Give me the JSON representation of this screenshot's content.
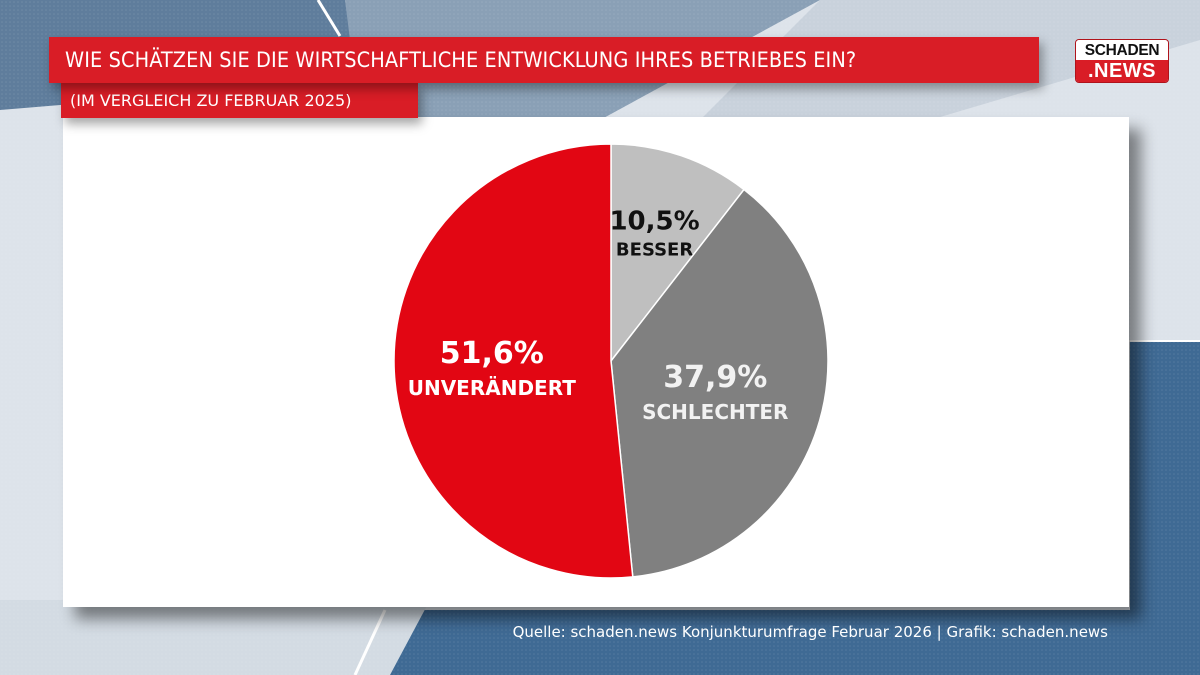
{
  "header": {
    "title": "WIE SCHÄTZEN SIE DIE WIRTSCHAFTLICHE ENTWICKLUNG IHRES BETRIEBES EIN?",
    "subtitle": "(IM VERGLEICH ZU FEBRUAR 2025)"
  },
  "logo": {
    "line1": "SCHADEN",
    "line2": ".NEWS"
  },
  "footer": {
    "source": "Quelle: schaden.news Konjunkturumfrage Februar 2026 | Grafik: schaden.news"
  },
  "colors": {
    "brand_red": "#d91d26",
    "background_blue": "#3f6a94"
  },
  "chart_data": {
    "type": "pie",
    "title": "WIE SCHÄTZEN SIE DIE WIRTSCHAFTLICHE ENTWICKLUNG IHRES BETRIEBES EIN?",
    "subtitle": "(IM VERGLEICH ZU FEBRUAR 2025)",
    "start": "top",
    "direction": "clockwise",
    "slices": [
      {
        "label": "BESSER",
        "value": 10.5,
        "value_label": "10,5%",
        "color": "#bfbfbf",
        "text_color": "#111111"
      },
      {
        "label": "SCHLECHTER",
        "value": 37.9,
        "value_label": "37,9%",
        "color": "#808080",
        "text_color": "#f2f2f2"
      },
      {
        "label": "UNVERÄNDERT",
        "value": 51.6,
        "value_label": "51,6%",
        "color": "#e20613",
        "text_color": "#ffffff"
      }
    ],
    "legend": "none",
    "source": "Quelle: schaden.news Konjunkturumfrage Februar 2026 | Grafik: schaden.news"
  }
}
